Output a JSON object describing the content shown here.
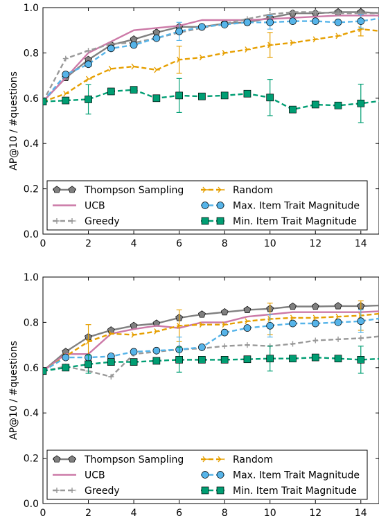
{
  "chart_data": [
    {
      "type": "line",
      "ylabel": "AP@10 / #questions",
      "xlim": [
        0,
        14.8
      ],
      "ylim": [
        0.0,
        1.0
      ],
      "xticks": [
        "0",
        "2",
        "4",
        "6",
        "8",
        "10",
        "12",
        "14"
      ],
      "yticks": [
        "0.0",
        "0.2",
        "0.4",
        "0.6",
        "0.8",
        "1.0"
      ],
      "grid": false,
      "legend": "bottom, 2 columns inside axes",
      "x": [
        0,
        1,
        2,
        3,
        4,
        5,
        6,
        7,
        8,
        9,
        10,
        11,
        12,
        13,
        14,
        15
      ],
      "series": [
        {
          "name": "Thompson Sampling",
          "color": "#808080",
          "marker": "pentagon",
          "style": "solid",
          "values": [
            0.585,
            0.69,
            0.77,
            0.835,
            0.86,
            0.89,
            0.915,
            0.915,
            0.93,
            0.935,
            0.955,
            0.975,
            0.975,
            0.98,
            0.98,
            0.975
          ]
        },
        {
          "name": "UCB",
          "color": "#cc79a7",
          "marker": "none",
          "style": "solid",
          "values": [
            0.585,
            0.69,
            0.8,
            0.85,
            0.9,
            0.91,
            0.92,
            0.945,
            0.945,
            0.945,
            0.95,
            0.955,
            0.96,
            0.965,
            0.965,
            0.965
          ]
        },
        {
          "name": "Greedy",
          "color": "#999999",
          "marker": "plus",
          "style": "dashed",
          "values": [
            0.585,
            0.775,
            0.81,
            0.84,
            0.845,
            0.865,
            0.89,
            0.91,
            0.93,
            0.95,
            0.97,
            0.98,
            0.98,
            0.975,
            0.975,
            0.975
          ]
        },
        {
          "name": "Random",
          "color": "#e69f00",
          "marker": "tri-right",
          "style": "dashed",
          "values": [
            0.585,
            0.62,
            0.685,
            0.73,
            0.74,
            0.725,
            0.77,
            0.78,
            0.8,
            0.815,
            0.835,
            0.845,
            0.86,
            0.875,
            0.905,
            0.895
          ],
          "error": [
            null,
            null,
            null,
            null,
            null,
            null,
            0.06,
            null,
            null,
            null,
            0.055,
            null,
            null,
            null,
            0.03,
            null
          ]
        },
        {
          "name": "Max. Item Trait Magnitude",
          "color": "#56b4e9",
          "marker": "circle",
          "style": "dashed",
          "values": [
            0.585,
            0.705,
            0.75,
            0.82,
            0.835,
            0.865,
            0.895,
            0.915,
            0.925,
            0.935,
            0.935,
            0.94,
            0.94,
            0.935,
            0.94,
            0.955
          ],
          "error": [
            null,
            null,
            null,
            null,
            null,
            null,
            0.04,
            null,
            null,
            null,
            0.03,
            null,
            null,
            null,
            0.03,
            null
          ]
        },
        {
          "name": "Min. Item Trait Magnitude",
          "color": "#009e73",
          "marker": "square",
          "style": "dashed",
          "values": [
            0.585,
            0.59,
            0.595,
            0.63,
            0.637,
            0.6,
            0.612,
            0.608,
            0.612,
            0.62,
            0.603,
            0.55,
            0.572,
            0.568,
            0.577,
            0.59
          ],
          "error": [
            null,
            null,
            0.065,
            null,
            null,
            null,
            0.075,
            null,
            null,
            null,
            0.08,
            null,
            null,
            null,
            0.085,
            null
          ]
        }
      ]
    },
    {
      "type": "line",
      "ylabel": "AP@10 / #questions",
      "xlim": [
        0,
        14.8
      ],
      "ylim": [
        0.0,
        1.0
      ],
      "xticks": [
        "0",
        "2",
        "4",
        "6",
        "8",
        "10",
        "12",
        "14"
      ],
      "yticks": [
        "0.0",
        "0.2",
        "0.4",
        "0.6",
        "0.8",
        "1.0"
      ],
      "grid": false,
      "legend": "bottom, 2 columns inside axes",
      "x": [
        0,
        1,
        2,
        3,
        4,
        5,
        6,
        7,
        8,
        9,
        10,
        11,
        12,
        13,
        14,
        15
      ],
      "series": [
        {
          "name": "Thompson Sampling",
          "color": "#808080",
          "marker": "pentagon",
          "style": "solid",
          "values": [
            0.585,
            0.67,
            0.735,
            0.765,
            0.785,
            0.795,
            0.82,
            0.835,
            0.845,
            0.855,
            0.86,
            0.87,
            0.87,
            0.872,
            0.872,
            0.875
          ]
        },
        {
          "name": "UCB",
          "color": "#cc79a7",
          "marker": "none",
          "style": "solid",
          "values": [
            0.585,
            0.66,
            0.66,
            0.75,
            0.77,
            0.785,
            0.775,
            0.8,
            0.8,
            0.825,
            0.835,
            0.845,
            0.845,
            0.845,
            0.845,
            0.85
          ]
        },
        {
          "name": "Greedy",
          "color": "#999999",
          "marker": "plus",
          "style": "dashed",
          "values": [
            0.585,
            0.605,
            0.585,
            0.56,
            0.66,
            0.67,
            0.68,
            0.685,
            0.695,
            0.7,
            0.695,
            0.705,
            0.72,
            0.725,
            0.73,
            0.74
          ]
        },
        {
          "name": "Random",
          "color": "#e69f00",
          "marker": "tri-right",
          "style": "dashed",
          "values": [
            0.585,
            0.65,
            0.715,
            0.75,
            0.745,
            0.76,
            0.785,
            0.79,
            0.79,
            0.805,
            0.815,
            0.82,
            0.82,
            0.825,
            0.83,
            0.84
          ],
          "error": [
            null,
            null,
            0.075,
            null,
            null,
            null,
            0.07,
            null,
            null,
            null,
            0.07,
            null,
            null,
            null,
            0.065,
            null
          ]
        },
        {
          "name": "Max. Item Trait Magnitude",
          "color": "#56b4e9",
          "marker": "circle",
          "style": "dashed",
          "values": [
            0.585,
            0.645,
            0.645,
            0.65,
            0.67,
            0.675,
            0.68,
            0.69,
            0.755,
            0.775,
            0.785,
            0.795,
            0.795,
            0.8,
            0.805,
            0.82
          ],
          "error": [
            null,
            null,
            null,
            null,
            null,
            null,
            0.055,
            null,
            null,
            null,
            0.05,
            null,
            null,
            null,
            0.05,
            null
          ]
        },
        {
          "name": "Min. Item Trait Magnitude",
          "color": "#009e73",
          "marker": "square",
          "style": "dashed",
          "values": [
            0.585,
            0.6,
            0.615,
            0.625,
            0.625,
            0.63,
            0.635,
            0.635,
            0.635,
            0.637,
            0.64,
            0.64,
            0.645,
            0.64,
            0.635,
            0.64
          ],
          "error": [
            null,
            null,
            0.04,
            null,
            null,
            null,
            0.055,
            null,
            null,
            null,
            0.055,
            null,
            null,
            null,
            0.06,
            null
          ]
        }
      ]
    }
  ]
}
